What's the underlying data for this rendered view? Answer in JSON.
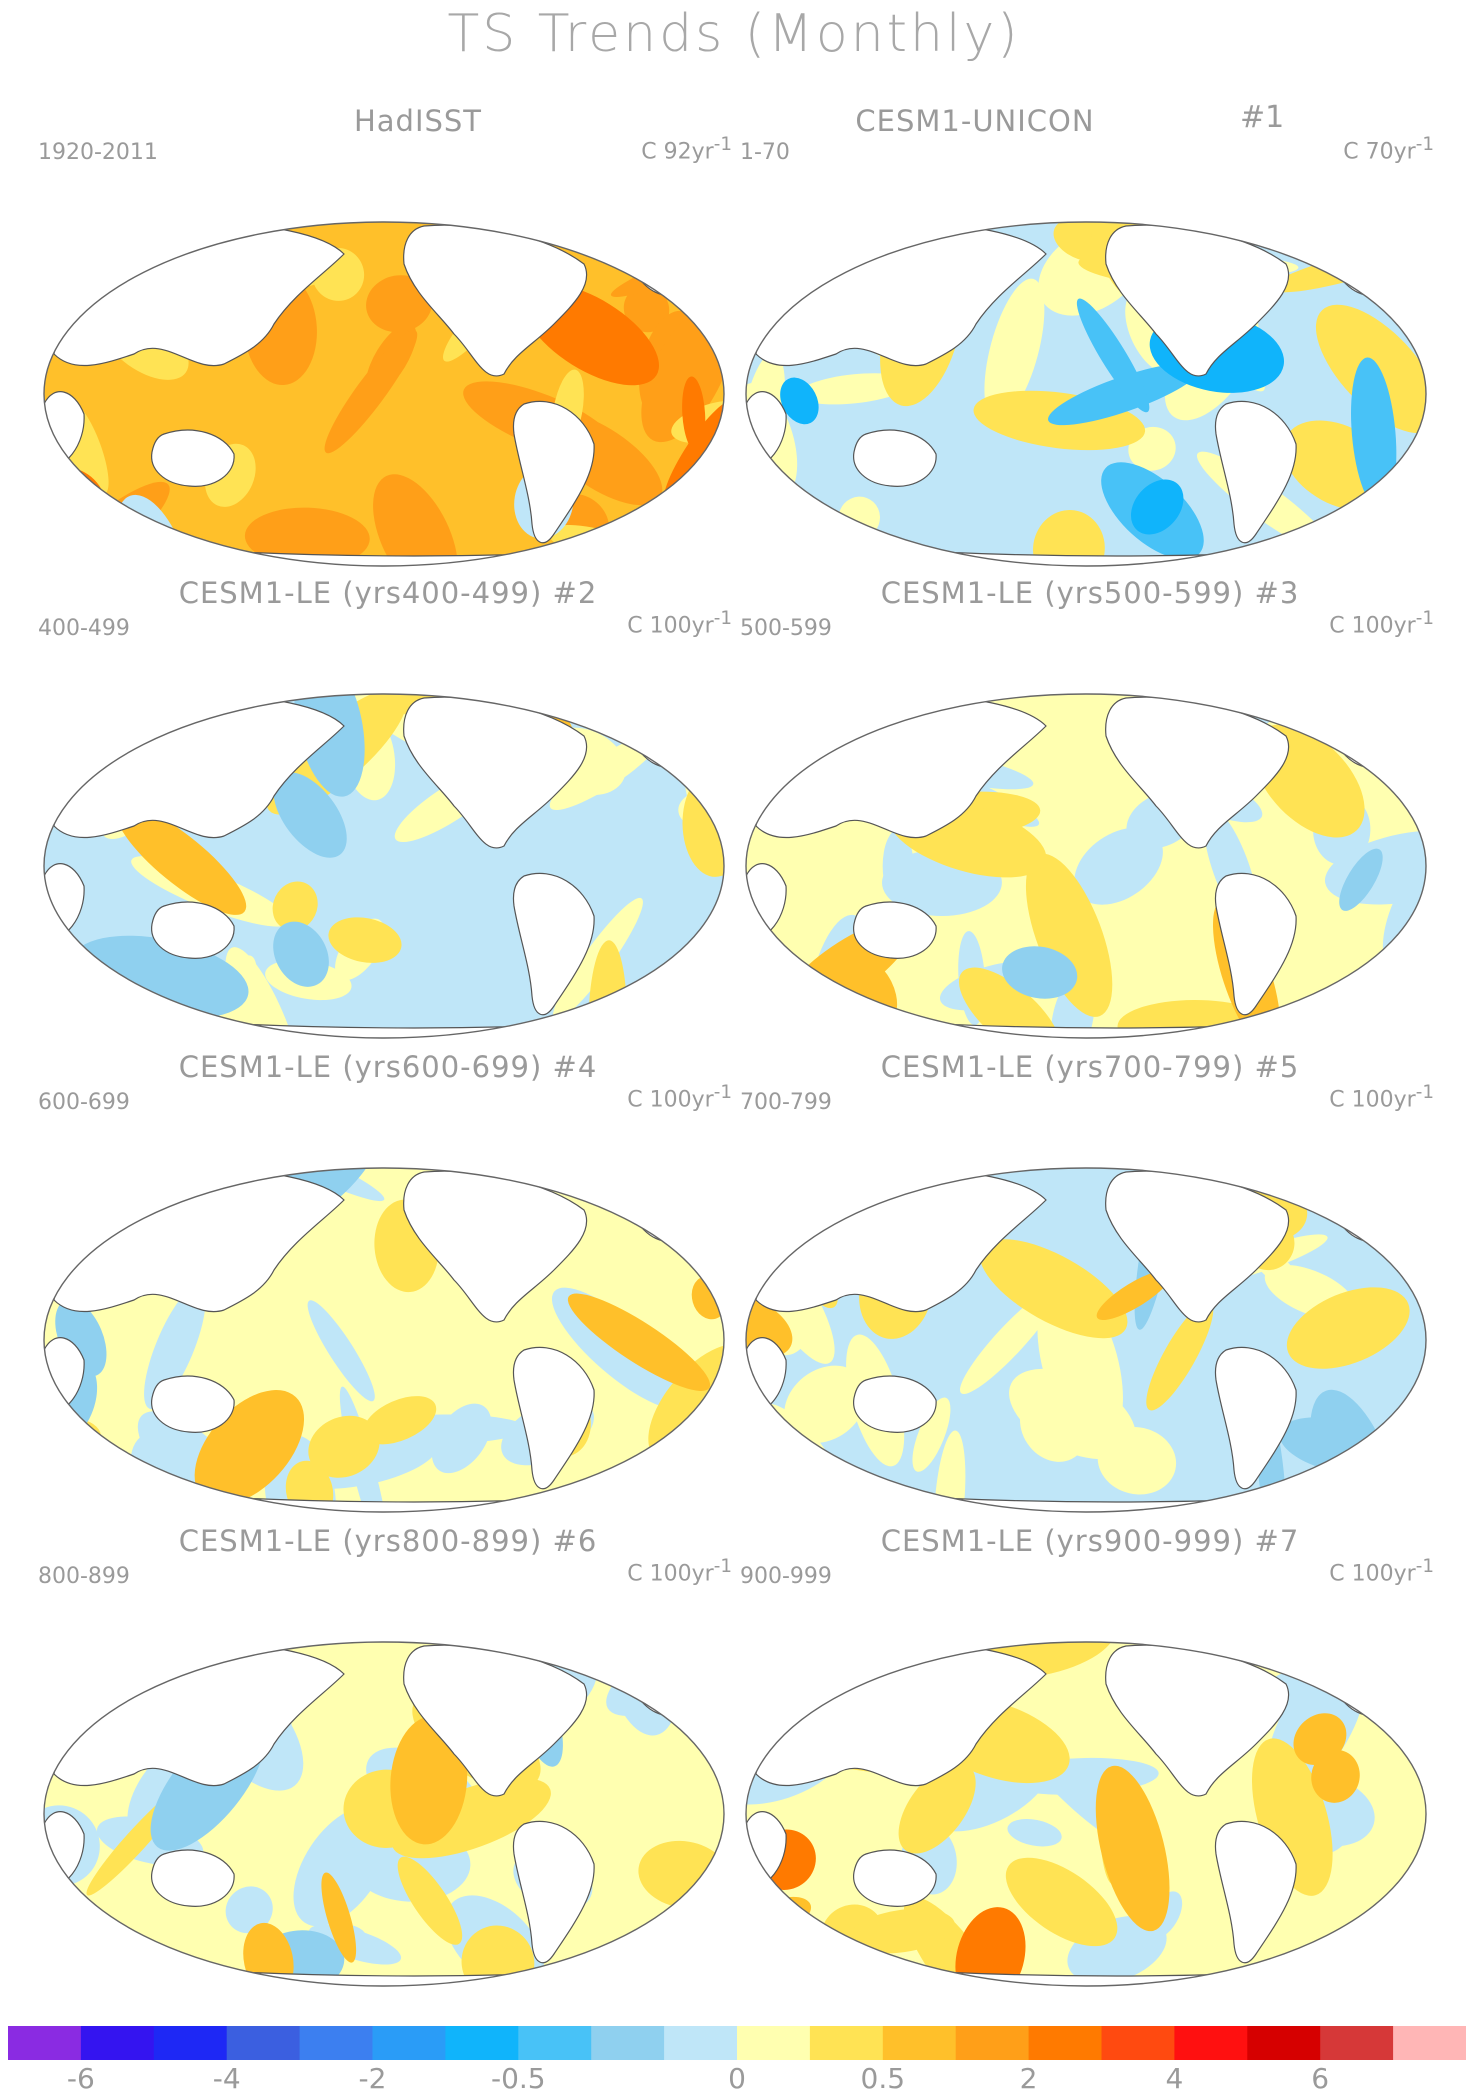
{
  "title": "TS Trends (Monthly)",
  "panels": [
    {
      "title": "HadISST",
      "years": "1920-2011",
      "units": "C 92yr",
      "number": "",
      "scheme": "warm"
    },
    {
      "title": "CESM1-UNICON",
      "years": "1-70",
      "units": "C 70yr",
      "number": "#1",
      "scheme": "cool"
    },
    {
      "title": "CESM1-LE (yrs400-499) #2",
      "years": "400-499",
      "units": "C 100yr",
      "number": "",
      "scheme": "mixed_cool"
    },
    {
      "title": "CESM1-LE (yrs500-599) #3",
      "years": "500-599",
      "units": "C 100yr",
      "number": "",
      "scheme": "mixed_warm"
    },
    {
      "title": "CESM1-LE (yrs600-699) #4",
      "years": "600-699",
      "units": "C 100yr",
      "number": "",
      "scheme": "mixed_warm"
    },
    {
      "title": "CESM1-LE (yrs700-799) #5",
      "years": "700-799",
      "units": "C 100yr",
      "number": "",
      "scheme": "mixed_cool"
    },
    {
      "title": "CESM1-LE (yrs800-899) #6",
      "years": "800-899",
      "units": "C 100yr",
      "number": "",
      "scheme": "mixed_warm"
    },
    {
      "title": "CESM1-LE (yrs900-999) #7",
      "years": "900-999",
      "units": "C 100yr",
      "number": "",
      "scheme": "warmish"
    }
  ],
  "units_exponent": "-1",
  "colorbar": {
    "colors": [
      "#8a2be2",
      "#3414f0",
      "#1e28f5",
      "#3b5fe0",
      "#3c7ff0",
      "#2a9cf7",
      "#10b4fb",
      "#48c2f7",
      "#8fd0ef",
      "#bfe6f8",
      "#ffffb0",
      "#ffe354",
      "#ffc02a",
      "#ff9f18",
      "#ff7a00",
      "#ff4a10",
      "#ff1010",
      "#d60000",
      "#d63838",
      "#ffb6b6"
    ],
    "labels": [
      "-6",
      "-4",
      "-2",
      "-0.5",
      "0",
      "0.5",
      "2",
      "4",
      "6"
    ],
    "label_boundaries": [
      1,
      3,
      5,
      7,
      10,
      12,
      14,
      16,
      18
    ]
  }
}
